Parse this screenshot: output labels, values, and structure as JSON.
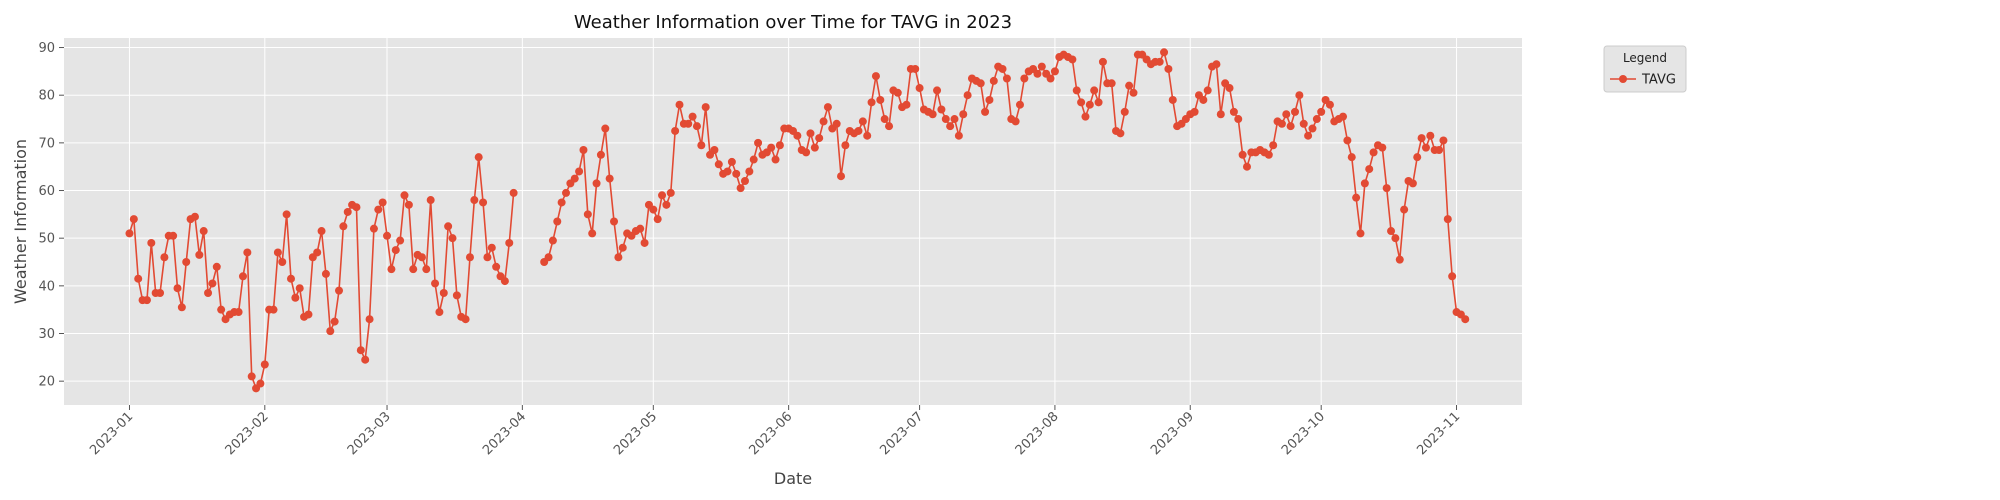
{
  "chart_data": {
    "type": "line",
    "title": "Weather Information over Time for TAVG in 2023",
    "xlabel": "Date",
    "ylabel": "Weather Information",
    "ylim": [
      15,
      92
    ],
    "yticks": [
      20,
      30,
      40,
      50,
      60,
      70,
      80,
      90
    ],
    "xtick_labels": [
      "2023-01",
      "2023-02",
      "2023-03",
      "2023-04",
      "2023-05",
      "2023-06",
      "2023-07",
      "2023-08",
      "2023-09",
      "2023-10",
      "2023-11"
    ],
    "xtick_days": [
      0,
      31,
      59,
      90,
      120,
      151,
      181,
      212,
      243,
      273,
      304
    ],
    "xlim_days": [
      -15,
      319
    ],
    "grid": true,
    "legend": {
      "title": "Legend",
      "placement": "outside-top-right",
      "entries": [
        "TAVG"
      ]
    },
    "colors": {
      "series": "#e24a33",
      "plot_bg": "#e5e5e5",
      "grid": "#ffffff"
    },
    "series": [
      {
        "name": "TAVG",
        "segments": [
          {
            "start_date": "2023-01-01",
            "values": [
              51,
              54,
              41.5,
              37,
              37,
              49,
              38.5,
              38.5,
              46,
              50.5,
              50.5,
              39.5,
              35.5,
              45,
              54,
              54.5,
              46.5,
              51.5,
              38.5,
              40.5,
              44,
              35,
              33,
              34,
              34.5,
              34.5,
              42,
              47,
              21,
              18.5,
              19.5,
              23.5,
              35,
              35,
              47,
              45,
              55,
              41.5,
              37.5,
              39.5,
              33.5,
              34,
              46,
              47,
              51.5,
              42.5,
              30.5,
              32.5,
              39,
              52.5,
              55.5,
              57,
              56.5,
              26.5,
              24.5,
              33,
              52,
              56,
              57.5,
              50.5,
              43.5,
              47.5,
              49.5,
              59,
              57,
              43.5,
              46.5,
              46,
              43.5,
              58,
              40.5,
              34.5,
              38.5,
              52.5,
              50,
              38,
              33.5,
              33,
              46,
              58,
              67,
              57.5,
              46,
              48,
              44,
              42,
              41,
              49,
              59.5
            ]
          },
          {
            "start_date": "2023-04-06",
            "values": [
              45,
              46,
              49.5,
              53.5,
              57.5,
              59.5,
              61.5,
              62.5,
              64,
              68.5,
              55,
              51,
              61.5,
              67.5,
              73,
              62.5,
              53.5,
              46,
              48,
              51,
              50.5,
              51.5,
              52,
              49,
              57,
              56,
              54,
              59,
              57,
              59.5,
              72.5,
              78,
              74,
              74,
              75.5,
              73.5,
              69.5,
              77.5,
              67.5,
              68.5,
              65.5,
              63.5,
              64,
              66,
              63.5,
              60.5,
              62,
              64,
              66.5,
              70,
              67.5,
              68,
              69,
              66.5,
              69.5,
              73,
              73,
              72.5,
              71.5,
              68.5,
              68,
              72,
              69,
              71,
              74.5,
              77.5,
              73,
              74,
              63,
              69.5,
              72.5,
              72,
              72.5,
              74.5,
              71.5,
              78.5,
              84,
              79,
              75,
              73.5,
              81,
              80.5,
              77.5,
              78,
              85.5,
              85.5,
              81.5,
              77,
              76.5,
              76,
              81,
              77,
              75,
              73.5,
              75,
              71.5,
              76,
              80,
              83.5,
              83,
              82.5,
              76.5,
              79,
              83,
              86,
              85.5,
              83.5,
              75,
              74.5,
              78,
              83.5,
              85,
              85.5,
              84.5,
              86,
              84.5,
              83.5,
              85,
              88,
              88.5,
              88,
              87.5,
              81,
              78.5,
              75.5,
              78,
              81,
              78.5,
              87,
              82.5,
              82.5,
              72.5,
              72,
              76.5,
              82,
              80.5,
              88.5,
              88.5,
              87.5,
              86.5,
              87,
              87,
              89,
              85.5,
              79,
              73.5,
              74,
              75,
              76,
              76.5,
              80,
              79,
              81,
              86,
              86.5,
              76,
              82.5,
              81.5,
              76.5,
              75,
              67.5,
              65,
              68,
              68,
              68.5,
              68,
              67.5,
              69.5,
              74.5,
              74,
              76,
              73.5,
              76.5,
              80,
              74,
              71.5,
              73,
              75,
              76.5,
              79,
              78,
              74.5,
              75,
              75.5,
              70.5,
              67,
              58.5,
              51,
              61.5,
              64.5,
              68,
              69.5,
              69,
              60.5,
              51.5,
              50,
              45.5,
              56,
              62,
              61.5,
              67,
              71,
              69,
              71.5,
              68.5,
              68.5,
              70.5,
              54,
              42,
              34.5,
              34,
              33
            ]
          }
        ]
      }
    ]
  }
}
